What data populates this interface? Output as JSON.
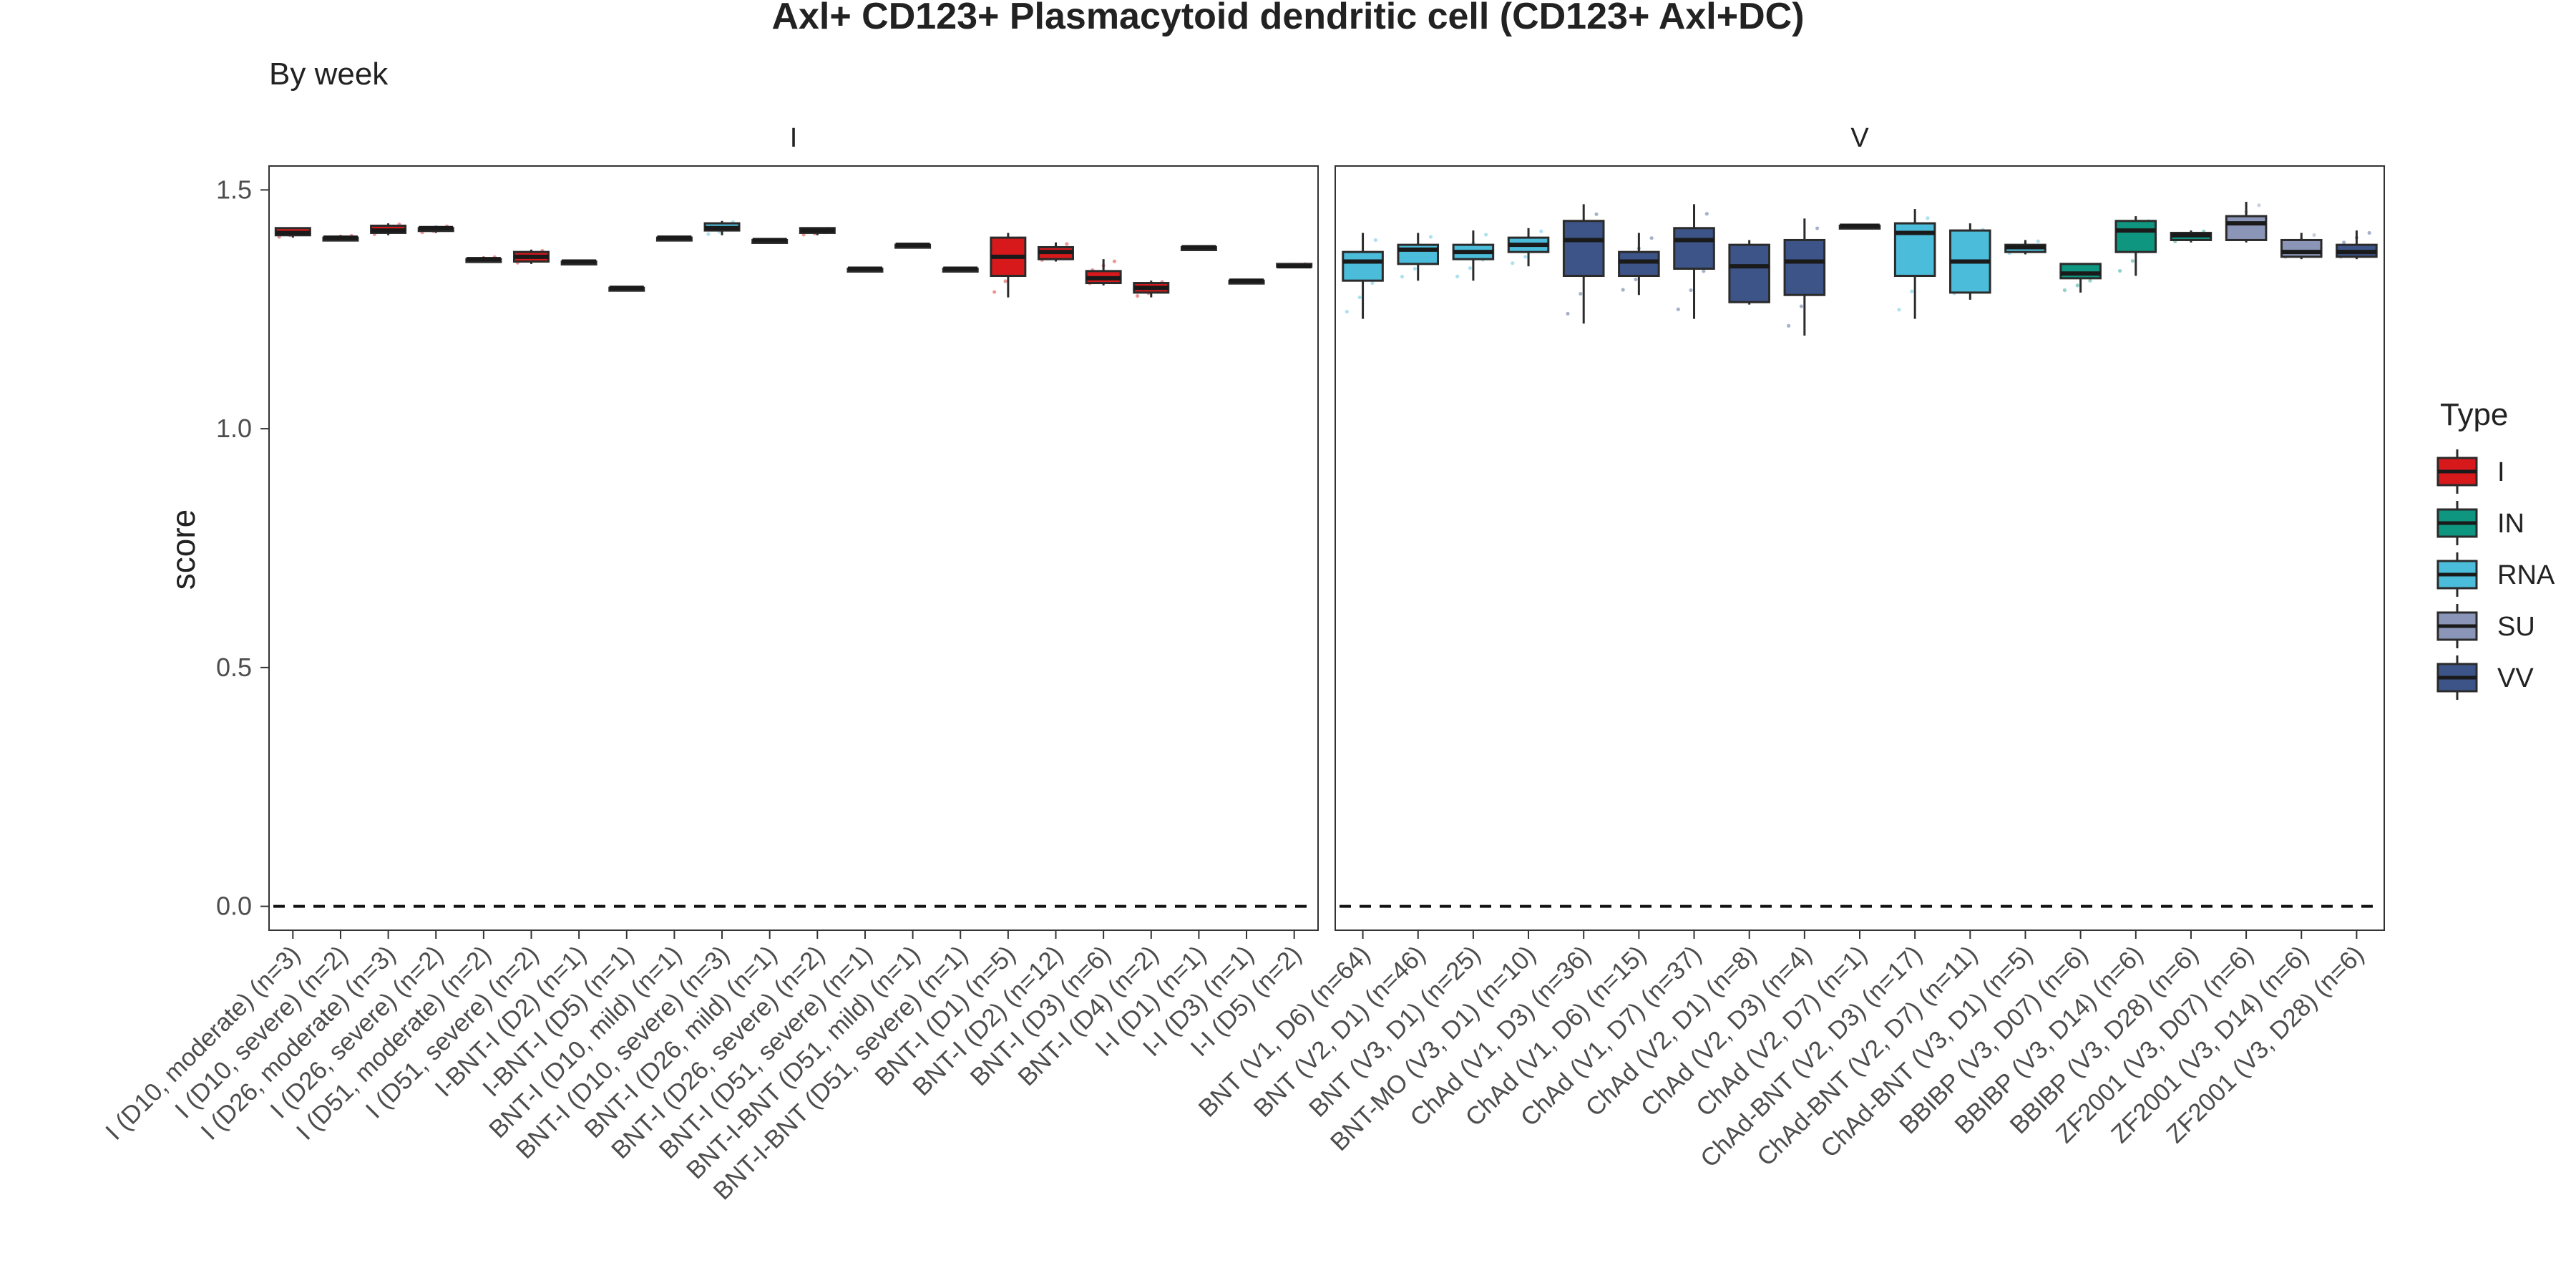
{
  "chart_data": {
    "type": "boxplot",
    "title": "Axl+ CD123+ Plasmacytoid dendritic cell (CD123+ Axl+DC)",
    "subtitle": "By week",
    "ylabel": "score",
    "ylim": [
      -0.05,
      1.55
    ],
    "yticks": [
      "0.0",
      "0.5",
      "1.0",
      "1.5"
    ],
    "ytick_values": [
      0.0,
      0.5,
      1.0,
      1.5
    ],
    "reference_line": {
      "y": 0,
      "style": "dashed"
    },
    "grid": false,
    "legend": {
      "title": "Type",
      "position": "right",
      "entries": [
        {
          "label": "I",
          "color": "#D7191C"
        },
        {
          "label": "IN",
          "color": "#0F9680"
        },
        {
          "label": "RNA",
          "color": "#4BBCD9"
        },
        {
          "label": "SU",
          "color": "#8A95B8"
        },
        {
          "label": "VV",
          "color": "#3C5488"
        }
      ]
    },
    "panels": [
      {
        "strip": "I",
        "boxes": [
          {
            "label": "I (D10, moderate) (n=3)",
            "type": "I",
            "min": 1.4,
            "q1": 1.405,
            "median": 1.41,
            "q3": 1.42,
            "max": 1.42
          },
          {
            "label": "I (D10, severe) (n=2)",
            "type": "I",
            "min": 1.395,
            "q1": 1.395,
            "median": 1.4,
            "q3": 1.4,
            "max": 1.405
          },
          {
            "label": "I (D26, moderate) (n=3)",
            "type": "I",
            "min": 1.405,
            "q1": 1.41,
            "median": 1.415,
            "q3": 1.425,
            "max": 1.43
          },
          {
            "label": "I (D26, severe) (n=2)",
            "type": "I",
            "min": 1.41,
            "q1": 1.415,
            "median": 1.42,
            "q3": 1.42,
            "max": 1.425
          },
          {
            "label": "I (D51, moderate) (n=2)",
            "type": "I",
            "min": 1.35,
            "q1": 1.355,
            "median": 1.355,
            "q3": 1.355,
            "max": 1.36
          },
          {
            "label": "I (D51, severe) (n=2)",
            "type": "I",
            "min": 1.345,
            "q1": 1.35,
            "median": 1.36,
            "q3": 1.37,
            "max": 1.375
          },
          {
            "label": "I-BNT-I (D2) (n=1)",
            "type": "I",
            "min": 1.35,
            "q1": 1.35,
            "median": 1.35,
            "q3": 1.35,
            "max": 1.35
          },
          {
            "label": "I-BNT-I (D5) (n=1)",
            "type": "I",
            "min": 1.295,
            "q1": 1.295,
            "median": 1.295,
            "q3": 1.295,
            "max": 1.295
          },
          {
            "label": "BNT-I (D10, mild) (n=1)",
            "type": "I",
            "min": 1.4,
            "q1": 1.4,
            "median": 1.4,
            "q3": 1.4,
            "max": 1.4
          },
          {
            "label": "BNT-I (D10, severe) (n=3)",
            "type": "RNA",
            "min": 1.405,
            "q1": 1.415,
            "median": 1.42,
            "q3": 1.43,
            "max": 1.435
          },
          {
            "label": "BNT-I (D26, mild) (n=1)",
            "type": "I",
            "min": 1.395,
            "q1": 1.395,
            "median": 1.395,
            "q3": 1.395,
            "max": 1.395
          },
          {
            "label": "BNT-I (D26, severe) (n=2)",
            "type": "I",
            "min": 1.405,
            "q1": 1.41,
            "median": 1.415,
            "q3": 1.42,
            "max": 1.42
          },
          {
            "label": "BNT-I (D51, severe) (n=1)",
            "type": "I",
            "min": 1.335,
            "q1": 1.335,
            "median": 1.335,
            "q3": 1.335,
            "max": 1.335
          },
          {
            "label": "BNT-I-BNT (D51, mild) (n=1)",
            "type": "I",
            "min": 1.385,
            "q1": 1.385,
            "median": 1.385,
            "q3": 1.385,
            "max": 1.385
          },
          {
            "label": "BNT-I-BNT (D51, severe) (n=1)",
            "type": "I",
            "min": 1.335,
            "q1": 1.335,
            "median": 1.335,
            "q3": 1.335,
            "max": 1.335
          },
          {
            "label": "BNT-I (D1) (n=5)",
            "type": "I",
            "min": 1.275,
            "q1": 1.32,
            "median": 1.36,
            "q3": 1.4,
            "max": 1.41
          },
          {
            "label": "BNT-I (D2) (n=12)",
            "type": "I",
            "min": 1.35,
            "q1": 1.355,
            "median": 1.37,
            "q3": 1.38,
            "max": 1.39
          },
          {
            "label": "BNT-I (D3) (n=6)",
            "type": "I",
            "min": 1.3,
            "q1": 1.305,
            "median": 1.315,
            "q3": 1.33,
            "max": 1.355
          },
          {
            "label": "BNT-I (D4) (n=2)",
            "type": "I",
            "min": 1.275,
            "q1": 1.285,
            "median": 1.295,
            "q3": 1.305,
            "max": 1.31
          },
          {
            "label": "I-I (D1) (n=1)",
            "type": "I",
            "min": 1.38,
            "q1": 1.38,
            "median": 1.38,
            "q3": 1.38,
            "max": 1.38
          },
          {
            "label": "I-I (D3) (n=1)",
            "type": "I",
            "min": 1.31,
            "q1": 1.31,
            "median": 1.31,
            "q3": 1.31,
            "max": 1.31
          },
          {
            "label": "I-I (D5) (n=2)",
            "type": "I",
            "min": 1.34,
            "q1": 1.34,
            "median": 1.34,
            "q3": 1.345,
            "max": 1.345
          }
        ]
      },
      {
        "strip": "V",
        "boxes": [
          {
            "label": "BNT (V1, D6) (n=64)",
            "type": "RNA",
            "min": 1.23,
            "q1": 1.31,
            "median": 1.35,
            "q3": 1.37,
            "max": 1.41
          },
          {
            "label": "BNT (V2, D1) (n=46)",
            "type": "RNA",
            "min": 1.31,
            "q1": 1.345,
            "median": 1.375,
            "q3": 1.385,
            "max": 1.41
          },
          {
            "label": "BNT (V3, D1) (n=25)",
            "type": "RNA",
            "min": 1.31,
            "q1": 1.355,
            "median": 1.37,
            "q3": 1.385,
            "max": 1.415
          },
          {
            "label": "BNT-MO (V3, D1) (n=10)",
            "type": "RNA",
            "min": 1.34,
            "q1": 1.37,
            "median": 1.385,
            "q3": 1.4,
            "max": 1.42
          },
          {
            "label": "ChAd (V1, D3) (n=36)",
            "type": "VV",
            "min": 1.22,
            "q1": 1.32,
            "median": 1.395,
            "q3": 1.435,
            "max": 1.47
          },
          {
            "label": "ChAd (V1, D6) (n=15)",
            "type": "VV",
            "min": 1.28,
            "q1": 1.32,
            "median": 1.35,
            "q3": 1.37,
            "max": 1.41
          },
          {
            "label": "ChAd (V1, D7) (n=37)",
            "type": "VV",
            "min": 1.23,
            "q1": 1.335,
            "median": 1.395,
            "q3": 1.42,
            "max": 1.47
          },
          {
            "label": "ChAd (V2, D1) (n=8)",
            "type": "VV",
            "min": 1.26,
            "q1": 1.265,
            "median": 1.34,
            "q3": 1.385,
            "max": 1.395
          },
          {
            "label": "ChAd (V2, D3) (n=4)",
            "type": "VV",
            "min": 1.195,
            "q1": 1.28,
            "median": 1.35,
            "q3": 1.395,
            "max": 1.44
          },
          {
            "label": "ChAd (V2, D7) (n=1)",
            "type": "VV",
            "min": 1.425,
            "q1": 1.425,
            "median": 1.425,
            "q3": 1.425,
            "max": 1.425
          },
          {
            "label": "ChAd-BNT (V2, D3) (n=17)",
            "type": "RNA",
            "min": 1.23,
            "q1": 1.32,
            "median": 1.41,
            "q3": 1.43,
            "max": 1.46
          },
          {
            "label": "ChAd-BNT (V2, D7) (n=11)",
            "type": "RNA",
            "min": 1.27,
            "q1": 1.285,
            "median": 1.35,
            "q3": 1.415,
            "max": 1.43
          },
          {
            "label": "ChAd-BNT (V3, D1) (n=5)",
            "type": "RNA",
            "min": 1.365,
            "q1": 1.37,
            "median": 1.38,
            "q3": 1.385,
            "max": 1.395
          },
          {
            "label": "BBIBP (V3, D07) (n=6)",
            "type": "IN",
            "min": 1.285,
            "q1": 1.315,
            "median": 1.325,
            "q3": 1.345,
            "max": 1.345
          },
          {
            "label": "BBIBP (V3, D14) (n=6)",
            "type": "IN",
            "min": 1.32,
            "q1": 1.37,
            "median": 1.415,
            "q3": 1.435,
            "max": 1.445
          },
          {
            "label": "BBIBP (V3, D28) (n=6)",
            "type": "IN",
            "min": 1.39,
            "q1": 1.395,
            "median": 1.405,
            "q3": 1.41,
            "max": 1.415
          },
          {
            "label": "ZF2001 (V3, D07) (n=6)",
            "type": "SU",
            "min": 1.39,
            "q1": 1.395,
            "median": 1.43,
            "q3": 1.445,
            "max": 1.475
          },
          {
            "label": "ZF2001 (V3, D14) (n=6)",
            "type": "SU",
            "min": 1.355,
            "q1": 1.36,
            "median": 1.37,
            "q3": 1.395,
            "max": 1.41
          },
          {
            "label": "ZF2001 (V3, D28) (n=6)",
            "type": "VV",
            "min": 1.355,
            "q1": 1.36,
            "median": 1.37,
            "q3": 1.385,
            "max": 1.415
          }
        ]
      }
    ]
  }
}
